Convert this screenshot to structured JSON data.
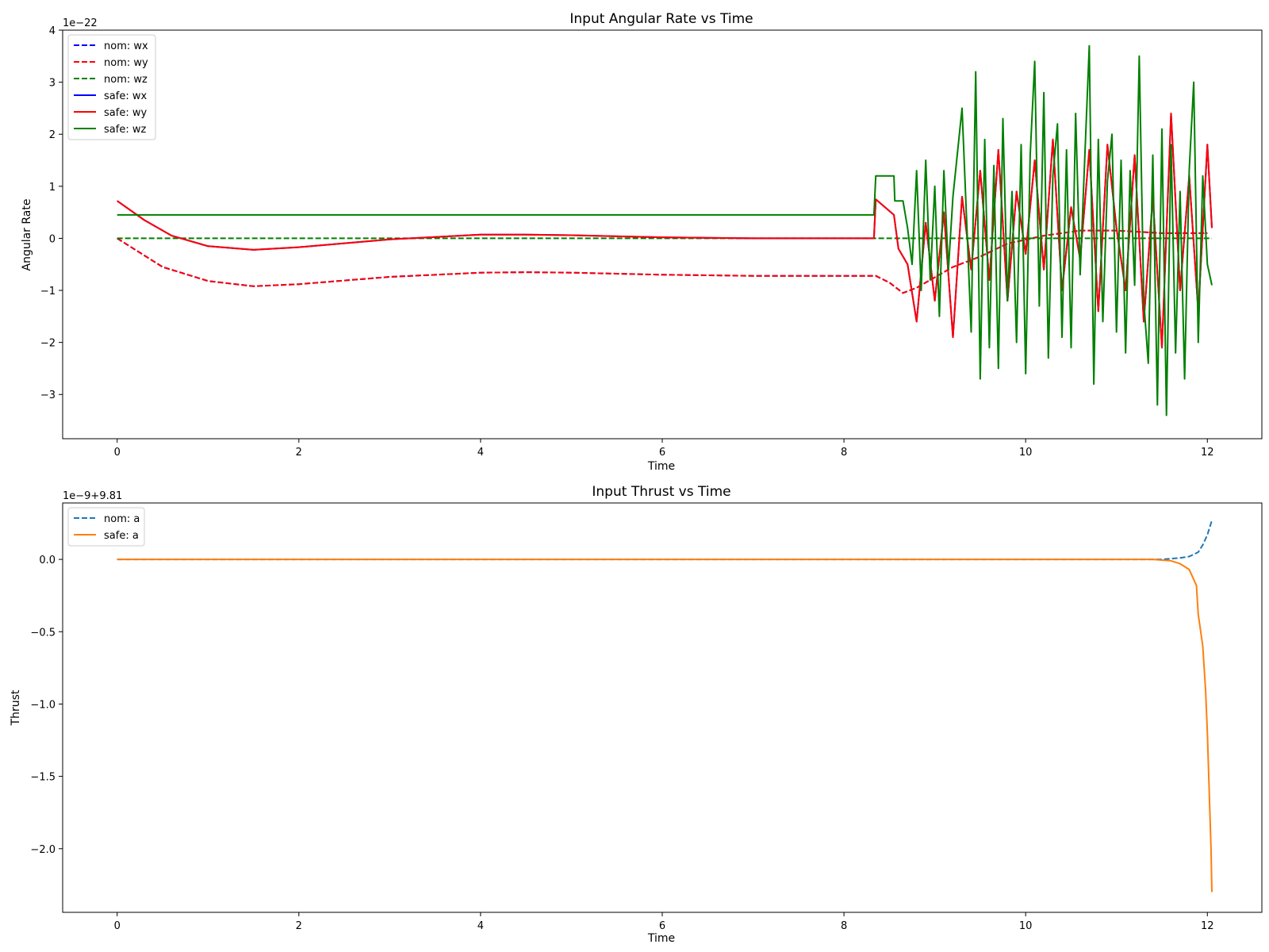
{
  "chart_data": [
    {
      "type": "line",
      "title": "Input Angular Rate vs Time",
      "xlabel": "Time",
      "ylabel": "Angular Rate",
      "offset_text": "1e−22",
      "xlim": [
        -0.6,
        12.6
      ],
      "ylim": [
        -3.85,
        4.0
      ],
      "xticks": [
        0,
        2,
        4,
        6,
        8,
        10,
        12
      ],
      "xtick_labels": [
        "0",
        "2",
        "4",
        "6",
        "8",
        "10",
        "12"
      ],
      "yticks": [
        -3,
        -2,
        -1,
        0,
        1,
        2,
        3,
        4
      ],
      "ytick_labels": [
        "−3",
        "−2",
        "−1",
        "0",
        "1",
        "2",
        "3",
        "4"
      ],
      "legend_position": "upper-left",
      "grid": false,
      "series": [
        {
          "name": "nom: wx",
          "color": "#0000ff",
          "dashed": true,
          "x": [
            0,
            0.5,
            1.0,
            1.5,
            2.0,
            3.0,
            4.0,
            4.5,
            5.0,
            6.0,
            7.0,
            8.0,
            8.35,
            8.5,
            8.65,
            8.8,
            9.0,
            9.2,
            9.5,
            9.8,
            10.2,
            10.6,
            11.0,
            11.5,
            12.0
          ],
          "y": [
            0,
            -0.55,
            -0.82,
            -0.92,
            -0.88,
            -0.74,
            -0.66,
            -0.65,
            -0.66,
            -0.7,
            -0.72,
            -0.72,
            -0.72,
            -0.85,
            -1.05,
            -0.95,
            -0.75,
            -0.55,
            -0.35,
            -0.1,
            0.05,
            0.15,
            0.15,
            0.1,
            0.1
          ]
        },
        {
          "name": "nom: wy",
          "color": "#ff0000",
          "dashed": true,
          "x": [
            0,
            0.5,
            1.0,
            1.5,
            2.0,
            3.0,
            4.0,
            4.5,
            5.0,
            6.0,
            7.0,
            8.0,
            8.35,
            8.5,
            8.65,
            8.8,
            9.0,
            9.2,
            9.5,
            9.8,
            10.2,
            10.6,
            11.0,
            11.5,
            12.0
          ],
          "y": [
            0,
            -0.55,
            -0.82,
            -0.92,
            -0.88,
            -0.74,
            -0.66,
            -0.65,
            -0.66,
            -0.7,
            -0.72,
            -0.72,
            -0.72,
            -0.85,
            -1.05,
            -0.95,
            -0.75,
            -0.55,
            -0.35,
            -0.1,
            0.05,
            0.15,
            0.15,
            0.1,
            0.1
          ]
        },
        {
          "name": "nom: wz",
          "color": "#008000",
          "dashed": true,
          "x": [
            0,
            12.05
          ],
          "y": [
            0,
            0
          ]
        },
        {
          "name": "safe: wx",
          "color": "#0000ff",
          "dashed": false,
          "x": [
            0,
            0.3,
            0.6,
            1.0,
            1.5,
            2.0,
            3.0,
            4.0,
            4.5,
            5.0,
            6.0,
            7.0,
            8.0,
            8.33,
            8.35,
            8.55,
            8.6,
            8.7,
            8.8,
            8.9,
            9.0,
            9.1,
            9.2,
            9.3,
            9.4,
            9.5,
            9.6,
            9.7,
            9.8,
            9.9,
            10.0,
            10.1,
            10.2,
            10.3,
            10.4,
            10.5,
            10.6,
            10.7,
            10.8,
            10.9,
            11.0,
            11.1,
            11.2,
            11.3,
            11.4,
            11.5,
            11.6,
            11.7,
            11.8,
            11.9,
            12.0,
            12.05
          ],
          "y": [
            0.72,
            0.35,
            0.05,
            -0.15,
            -0.22,
            -0.17,
            -0.02,
            0.07,
            0.07,
            0.06,
            0.02,
            0,
            0,
            0,
            0.75,
            0.45,
            -0.2,
            -0.5,
            -1.6,
            0.3,
            -1.2,
            0.5,
            -1.9,
            0.8,
            -0.6,
            1.3,
            -0.8,
            1.7,
            -1.2,
            0.9,
            -0.3,
            1.5,
            -0.6,
            1.9,
            -1.0,
            0.6,
            -0.4,
            1.7,
            -1.4,
            1.8,
            0.2,
            -1.0,
            1.6,
            -1.6,
            0.8,
            -2.1,
            2.4,
            -1.0,
            1.2,
            -1.4,
            1.8,
            0.2
          ]
        },
        {
          "name": "safe: wy",
          "color": "#ff0000",
          "dashed": false,
          "x": [
            0,
            0.3,
            0.6,
            1.0,
            1.5,
            2.0,
            3.0,
            4.0,
            4.5,
            5.0,
            6.0,
            7.0,
            8.0,
            8.33,
            8.35,
            8.55,
            8.6,
            8.7,
            8.8,
            8.9,
            9.0,
            9.1,
            9.2,
            9.3,
            9.4,
            9.5,
            9.6,
            9.7,
            9.8,
            9.9,
            10.0,
            10.1,
            10.2,
            10.3,
            10.4,
            10.5,
            10.6,
            10.7,
            10.8,
            10.9,
            11.0,
            11.1,
            11.2,
            11.3,
            11.4,
            11.5,
            11.6,
            11.7,
            11.8,
            11.9,
            12.0,
            12.05
          ],
          "y": [
            0.72,
            0.35,
            0.05,
            -0.15,
            -0.22,
            -0.17,
            -0.02,
            0.07,
            0.07,
            0.06,
            0.02,
            0,
            0,
            0,
            0.75,
            0.45,
            -0.2,
            -0.5,
            -1.6,
            0.3,
            -1.2,
            0.5,
            -1.9,
            0.8,
            -0.6,
            1.3,
            -0.8,
            1.7,
            -1.2,
            0.9,
            -0.3,
            1.5,
            -0.6,
            1.9,
            -1.0,
            0.6,
            -0.4,
            1.7,
            -1.4,
            1.8,
            0.2,
            -1.0,
            1.6,
            -1.6,
            0.8,
            -2.1,
            2.4,
            -1.0,
            1.2,
            -1.4,
            1.8,
            0.2
          ]
        },
        {
          "name": "safe: wz",
          "color": "#008000",
          "dashed": false,
          "x": [
            0,
            8.33,
            8.35,
            8.55,
            8.56,
            8.65,
            8.7,
            8.75,
            8.8,
            8.85,
            8.9,
            8.95,
            9.0,
            9.05,
            9.1,
            9.15,
            9.2,
            9.3,
            9.4,
            9.45,
            9.5,
            9.55,
            9.6,
            9.65,
            9.7,
            9.75,
            9.8,
            9.85,
            9.9,
            9.95,
            10.0,
            10.05,
            10.1,
            10.15,
            10.2,
            10.25,
            10.3,
            10.35,
            10.4,
            10.45,
            10.5,
            10.55,
            10.6,
            10.65,
            10.7,
            10.75,
            10.8,
            10.85,
            10.9,
            10.95,
            11.0,
            11.05,
            11.1,
            11.15,
            11.2,
            11.25,
            11.3,
            11.35,
            11.4,
            11.45,
            11.5,
            11.55,
            11.6,
            11.65,
            11.7,
            11.75,
            11.8,
            11.85,
            11.9,
            11.95,
            12.0,
            12.05
          ],
          "y": [
            0.45,
            0.45,
            1.2,
            1.2,
            0.72,
            0.72,
            0.2,
            -0.5,
            1.3,
            -1.0,
            1.5,
            -0.8,
            1.0,
            -1.5,
            1.3,
            -0.6,
            0.8,
            2.5,
            -1.8,
            3.2,
            -2.7,
            1.9,
            -2.1,
            1.4,
            -2.5,
            2.3,
            -1.2,
            0.9,
            -2.0,
            1.8,
            -2.6,
            1.6,
            3.4,
            -1.3,
            2.8,
            -2.3,
            1.2,
            2.2,
            -1.9,
            1.7,
            -2.1,
            2.4,
            -0.7,
            1.5,
            3.7,
            -2.8,
            1.9,
            -1.6,
            1.1,
            2.0,
            -1.8,
            1.5,
            -2.2,
            1.3,
            -0.9,
            3.5,
            -1.2,
            -2.4,
            1.6,
            -3.2,
            2.1,
            -3.4,
            1.8,
            -2.2,
            0.9,
            -2.7,
            1.3,
            3.0,
            -2.0,
            1.2,
            -0.5,
            -0.9
          ]
        }
      ]
    },
    {
      "type": "line",
      "title": "Input Thrust vs Time",
      "xlabel": "Time",
      "ylabel": "Thrust",
      "offset_text": "1e−9+9.81",
      "xlim": [
        -0.6,
        12.6
      ],
      "ylim": [
        -2.44,
        0.39
      ],
      "xticks": [
        0,
        2,
        4,
        6,
        8,
        10,
        12
      ],
      "xtick_labels": [
        "0",
        "2",
        "4",
        "6",
        "8",
        "10",
        "12"
      ],
      "yticks": [
        -2.0,
        -1.5,
        -1.0,
        -0.5,
        0.0
      ],
      "ytick_labels": [
        "−2.0",
        "−1.5",
        "−1.0",
        "−0.5",
        "0.0"
      ],
      "legend_position": "upper-left",
      "grid": false,
      "series": [
        {
          "name": "nom: a",
          "color": "#1f77b4",
          "dashed": true,
          "x": [
            0,
            11.0,
            11.5,
            11.7,
            11.8,
            11.9,
            11.95,
            12.0,
            12.05
          ],
          "y": [
            0,
            0,
            0,
            0.01,
            0.02,
            0.05,
            0.1,
            0.17,
            0.27
          ]
        },
        {
          "name": "safe: a",
          "color": "#ff7f0e",
          "dashed": false,
          "x": [
            0,
            11.4,
            11.6,
            11.7,
            11.8,
            11.88,
            11.9,
            11.95,
            11.98,
            12.0,
            12.02,
            12.04,
            12.05
          ],
          "y": [
            0,
            0,
            -0.01,
            -0.03,
            -0.07,
            -0.18,
            -0.38,
            -0.6,
            -0.9,
            -1.2,
            -1.6,
            -2.0,
            -2.3
          ]
        }
      ]
    }
  ]
}
